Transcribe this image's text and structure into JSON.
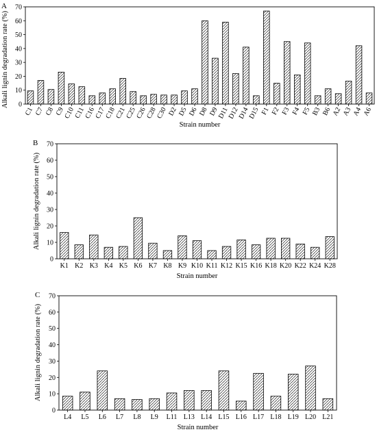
{
  "chart_data": [
    {
      "type": "bar",
      "panel": "A",
      "xlabel": "Strain number",
      "ylabel": "Alkali lignin degradation rate (%)",
      "ylim": [
        0,
        70
      ],
      "yticks": [
        "0",
        "10",
        "20",
        "30",
        "40",
        "50",
        "60",
        "70"
      ],
      "grid": false,
      "bar_fill": "hatched",
      "categories": [
        "C1",
        "C7",
        "C8",
        "C9",
        "C10",
        "C11",
        "C16",
        "C17",
        "C18",
        "C21",
        "C25",
        "C26",
        "C28",
        "C30",
        "D2",
        "D5",
        "D6",
        "D8",
        "D9",
        "D11",
        "D12",
        "D14",
        "D15",
        "F1",
        "F2",
        "F3",
        "F4",
        "F5",
        "B3",
        "B6",
        "A2",
        "A3",
        "A4",
        "A6"
      ],
      "values": [
        9.5,
        17,
        10.5,
        23,
        14.5,
        12.5,
        6,
        8,
        11,
        18.5,
        9,
        6,
        7,
        6.5,
        6.5,
        9.5,
        11,
        60,
        33,
        59,
        22,
        41,
        6,
        67,
        15,
        45,
        21,
        44,
        6,
        11,
        7.5,
        16.5,
        42,
        8
      ]
    },
    {
      "type": "bar",
      "panel": "B",
      "xlabel": "Strain number",
      "ylabel": "Alkali lignin degradation rate (%)",
      "ylim": [
        0,
        70
      ],
      "yticks": [
        "0",
        "10",
        "20",
        "30",
        "40",
        "50",
        "60",
        "70"
      ],
      "grid": false,
      "bar_fill": "hatched",
      "categories": [
        "K1",
        "K2",
        "K3",
        "K4",
        "K5",
        "K6",
        "K7",
        "K8",
        "K9",
        "K10",
        "K11",
        "K12",
        "K15",
        "K16",
        "K18",
        "K20",
        "K22",
        "K24",
        "K28"
      ],
      "values": [
        16,
        8.5,
        14.5,
        7,
        7.5,
        25,
        9.5,
        5,
        14,
        11,
        5,
        7.5,
        11.5,
        8.5,
        12.5,
        12.5,
        9,
        7,
        13.5
      ]
    },
    {
      "type": "bar",
      "panel": "C",
      "xlabel": "Strain number",
      "ylabel": "Alkali lignin degradation rate (%)",
      "ylim": [
        0,
        70
      ],
      "yticks": [
        "0",
        "10",
        "20",
        "30",
        "40",
        "50",
        "60",
        "70"
      ],
      "grid": false,
      "bar_fill": "hatched",
      "categories": [
        "L4",
        "L5",
        "L6",
        "L7",
        "L8",
        "L9",
        "L11",
        "L13",
        "L14",
        "L15",
        "L16",
        "L17",
        "L18",
        "L19",
        "L20",
        "L21"
      ],
      "values": [
        8.5,
        11,
        24,
        7,
        6.5,
        7,
        10.5,
        12,
        12,
        24,
        5.5,
        22.5,
        8.5,
        22,
        27,
        7
      ]
    }
  ]
}
